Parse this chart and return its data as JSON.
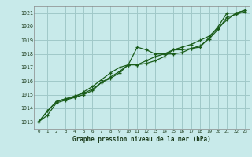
{
  "xlabel": "Graphe pression niveau de la mer (hPa)",
  "bg_color": "#c8eaea",
  "grid_color": "#a0c8c8",
  "line_color": "#1a5c1a",
  "ylim": [
    1012.5,
    1021.5
  ],
  "yticks": [
    1013,
    1014,
    1015,
    1016,
    1017,
    1018,
    1019,
    1020,
    1021
  ],
  "xlim": [
    -0.5,
    23.5
  ],
  "xticks": [
    0,
    1,
    2,
    3,
    4,
    5,
    6,
    7,
    8,
    9,
    10,
    11,
    12,
    13,
    14,
    15,
    16,
    17,
    18,
    19,
    20,
    21,
    22,
    23
  ],
  "series1_x": [
    0,
    1,
    2,
    3,
    4,
    5,
    6,
    7,
    8,
    9,
    10,
    11,
    12,
    13,
    14,
    15,
    16,
    17,
    18,
    19,
    20,
    21,
    22,
    23
  ],
  "series1_y": [
    1013.0,
    1013.8,
    1014.5,
    1014.7,
    1014.9,
    1015.1,
    1015.4,
    1015.9,
    1016.2,
    1016.6,
    1017.2,
    1018.5,
    1018.3,
    1018.0,
    1018.0,
    1018.3,
    1018.3,
    1018.4,
    1018.5,
    1019.2,
    1020.0,
    1021.0,
    1021.0,
    1021.2
  ],
  "series2_x": [
    0,
    1,
    2,
    3,
    4,
    5,
    6,
    7,
    8,
    9,
    10,
    11,
    12,
    13,
    14,
    15,
    16,
    17,
    18,
    19,
    20,
    21,
    22,
    23
  ],
  "series2_y": [
    1013.0,
    1013.8,
    1014.5,
    1014.7,
    1014.8,
    1015.0,
    1015.3,
    1015.9,
    1016.3,
    1016.7,
    1017.2,
    1017.2,
    1017.5,
    1017.8,
    1018.0,
    1018.0,
    1018.1,
    1018.4,
    1018.6,
    1019.1,
    1019.8,
    1020.7,
    1020.9,
    1021.1
  ],
  "series3_x": [
    0,
    1,
    2,
    3,
    4,
    5,
    6,
    7,
    8,
    9,
    10,
    11,
    12,
    13,
    14,
    15,
    16,
    17,
    18,
    19,
    20,
    21,
    22,
    23
  ],
  "series3_y": [
    1013.0,
    1013.5,
    1014.4,
    1014.6,
    1014.8,
    1015.2,
    1015.6,
    1016.1,
    1016.6,
    1017.0,
    1017.2,
    1017.2,
    1017.3,
    1017.5,
    1017.8,
    1018.3,
    1018.5,
    1018.7,
    1019.0,
    1019.3,
    1019.9,
    1020.5,
    1021.0,
    1021.2
  ]
}
